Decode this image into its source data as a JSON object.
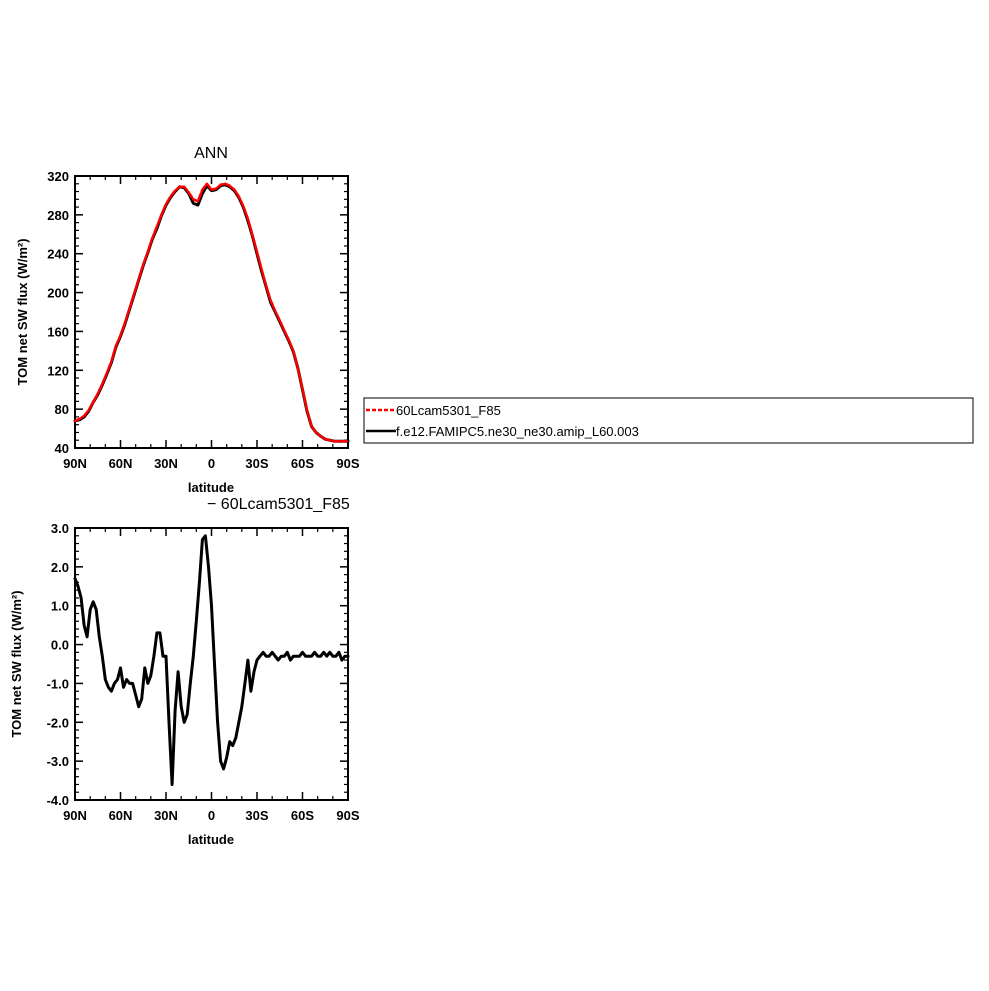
{
  "chart_data": [
    {
      "type": "line",
      "title": "ANN",
      "xlabel": "latitude",
      "ylabel": "TOM net SW flux (W/m²)",
      "xlim": [
        90,
        -90
      ],
      "ylim": [
        40,
        320
      ],
      "x_ticks": [
        {
          "value": 90,
          "label": "90N"
        },
        {
          "value": 60,
          "label": "60N"
        },
        {
          "value": 30,
          "label": "30N"
        },
        {
          "value": 0,
          "label": "0"
        },
        {
          "value": -30,
          "label": "30S"
        },
        {
          "value": -60,
          "label": "60S"
        },
        {
          "value": -90,
          "label": "90S"
        }
      ],
      "y_ticks": [
        {
          "value": 40,
          "label": "40"
        },
        {
          "value": 80,
          "label": "80"
        },
        {
          "value": 120,
          "label": "120"
        },
        {
          "value": 160,
          "label": "160"
        },
        {
          "value": 200,
          "label": "200"
        },
        {
          "value": 240,
          "label": "240"
        },
        {
          "value": 280,
          "label": "280"
        },
        {
          "value": 320,
          "label": "320"
        }
      ],
      "legend": {
        "placement": "right",
        "entries": [
          {
            "name": "60Lcam5301_F85",
            "color": "#ff0000",
            "style": "dashed"
          },
          {
            "name": "f.e12.FAMIPC5.ne30_ne30.amip_L60.003",
            "color": "#000000",
            "style": "solid"
          }
        ]
      },
      "series": [
        {
          "name": "f.e12.FAMIPC5.ne30_ne30.amip_L60.003",
          "color": "#000000",
          "x": [
            90,
            87,
            84,
            81,
            78,
            75,
            72,
            69,
            66,
            63,
            60,
            57,
            54,
            51,
            48,
            45,
            42,
            39,
            36,
            33,
            30,
            27,
            24,
            21,
            18,
            15,
            12,
            9,
            6,
            3,
            0,
            -3,
            -6,
            -9,
            -12,
            -15,
            -18,
            -21,
            -24,
            -27,
            -30,
            -33,
            -36,
            -39,
            -42,
            -45,
            -48,
            -51,
            -54,
            -57,
            -60,
            -63,
            -66,
            -69,
            -72,
            -75,
            -78,
            -81,
            -84,
            -87,
            -90
          ],
          "y": [
            68,
            69,
            72,
            78,
            87,
            95,
            105,
            116,
            128,
            144,
            155,
            168,
            183,
            198,
            213,
            228,
            241,
            255,
            266,
            279,
            290,
            298,
            304,
            309,
            308,
            302,
            292,
            290,
            302,
            310,
            305,
            306,
            310,
            311,
            309,
            305,
            298,
            288,
            274,
            258,
            240,
            222,
            206,
            190,
            180,
            170,
            160,
            150,
            139,
            122,
            100,
            78,
            62,
            56,
            52,
            49,
            48,
            47,
            47,
            47,
            47
          ]
        },
        {
          "name": "60Lcam5301_F85",
          "color": "#ff0000",
          "x": [
            90,
            87,
            84,
            81,
            78,
            75,
            72,
            69,
            66,
            63,
            60,
            57,
            54,
            51,
            48,
            45,
            42,
            39,
            36,
            33,
            30,
            27,
            24,
            21,
            18,
            15,
            12,
            9,
            6,
            3,
            0,
            -3,
            -6,
            -9,
            -12,
            -15,
            -18,
            -21,
            -24,
            -27,
            -30,
            -33,
            -36,
            -39,
            -42,
            -45,
            -48,
            -51,
            -54,
            -57,
            -60,
            -63,
            -66,
            -69,
            -72,
            -75,
            -78,
            -81,
            -84,
            -87,
            -90
          ],
          "y": [
            68,
            70,
            73,
            79,
            87,
            96,
            106,
            117,
            129,
            145,
            156,
            169,
            184,
            199,
            214,
            229,
            242,
            256,
            268,
            280,
            291,
            299,
            305,
            309,
            309,
            303,
            296,
            294,
            306,
            312,
            306,
            307,
            311,
            312,
            310,
            306,
            299,
            289,
            276,
            259,
            242,
            224,
            207,
            192,
            181,
            171,
            161,
            151,
            140,
            122,
            101,
            79,
            62,
            56,
            52,
            49,
            48,
            47,
            47,
            47,
            47
          ]
        }
      ]
    },
    {
      "type": "line",
      "title": "− 60Lcam5301_F85",
      "xlabel": "latitude",
      "ylabel": "TOM net SW flux (W/m²)",
      "xlim": [
        90,
        -90
      ],
      "ylim": [
        -4.0,
        3.0
      ],
      "x_ticks": [
        {
          "value": 90,
          "label": "90N"
        },
        {
          "value": 60,
          "label": "60N"
        },
        {
          "value": 30,
          "label": "30N"
        },
        {
          "value": 0,
          "label": "0"
        },
        {
          "value": -30,
          "label": "30S"
        },
        {
          "value": -60,
          "label": "60S"
        },
        {
          "value": -90,
          "label": "90S"
        }
      ],
      "y_ticks": [
        {
          "value": -4.0,
          "label": "-4.0"
        },
        {
          "value": -3.0,
          "label": "-3.0"
        },
        {
          "value": -2.0,
          "label": "-2.0"
        },
        {
          "value": -1.0,
          "label": "-1.0"
        },
        {
          "value": 0.0,
          "label": "0.0"
        },
        {
          "value": 1.0,
          "label": "1.0"
        },
        {
          "value": 2.0,
          "label": "2.0"
        },
        {
          "value": 3.0,
          "label": "3.0"
        }
      ],
      "series": [
        {
          "color": "#000000",
          "x": [
            90,
            88,
            86,
            84,
            82,
            80,
            78,
            76,
            74,
            72,
            70,
            68,
            66,
            64,
            62,
            60,
            58,
            56,
            54,
            52,
            50,
            48,
            46,
            44,
            42,
            40,
            38,
            36,
            34,
            32,
            30,
            28,
            26,
            24,
            22,
            20,
            18,
            16,
            14,
            12,
            10,
            8,
            6,
            4,
            2,
            0,
            -2,
            -4,
            -6,
            -8,
            -10,
            -12,
            -14,
            -16,
            -18,
            -20,
            -22,
            -24,
            -26,
            -28,
            -30,
            -32,
            -34,
            -36,
            -38,
            -40,
            -42,
            -44,
            -46,
            -48,
            -50,
            -52,
            -54,
            -56,
            -58,
            -60,
            -62,
            -64,
            -66,
            -68,
            -70,
            -72,
            -74,
            -76,
            -78,
            -80,
            -82,
            -84,
            -86,
            -88,
            -90
          ],
          "y": [
            1.7,
            1.5,
            1.2,
            0.5,
            0.2,
            0.9,
            1.1,
            0.9,
            0.2,
            -0.3,
            -0.9,
            -1.1,
            -1.2,
            -1.0,
            -0.9,
            -0.6,
            -1.1,
            -0.9,
            -1.0,
            -1.0,
            -1.3,
            -1.6,
            -1.4,
            -0.6,
            -1.0,
            -0.8,
            -0.3,
            0.3,
            0.3,
            -0.3,
            -0.3,
            -2.0,
            -3.6,
            -1.7,
            -0.7,
            -1.6,
            -2.0,
            -1.8,
            -1.0,
            -0.3,
            0.6,
            1.6,
            2.7,
            2.8,
            2.0,
            1.0,
            -0.5,
            -2.0,
            -3.0,
            -3.2,
            -2.9,
            -2.5,
            -2.6,
            -2.4,
            -2.0,
            -1.6,
            -1.0,
            -0.4,
            -1.2,
            -0.7,
            -0.4,
            -0.3,
            -0.2,
            -0.3,
            -0.3,
            -0.2,
            -0.3,
            -0.4,
            -0.3,
            -0.3,
            -0.2,
            -0.4,
            -0.3,
            -0.3,
            -0.3,
            -0.2,
            -0.3,
            -0.3,
            -0.3,
            -0.2,
            -0.3,
            -0.3,
            -0.2,
            -0.3,
            -0.2,
            -0.3,
            -0.3,
            -0.2,
            -0.4,
            -0.3,
            -0.3
          ]
        }
      ]
    }
  ]
}
